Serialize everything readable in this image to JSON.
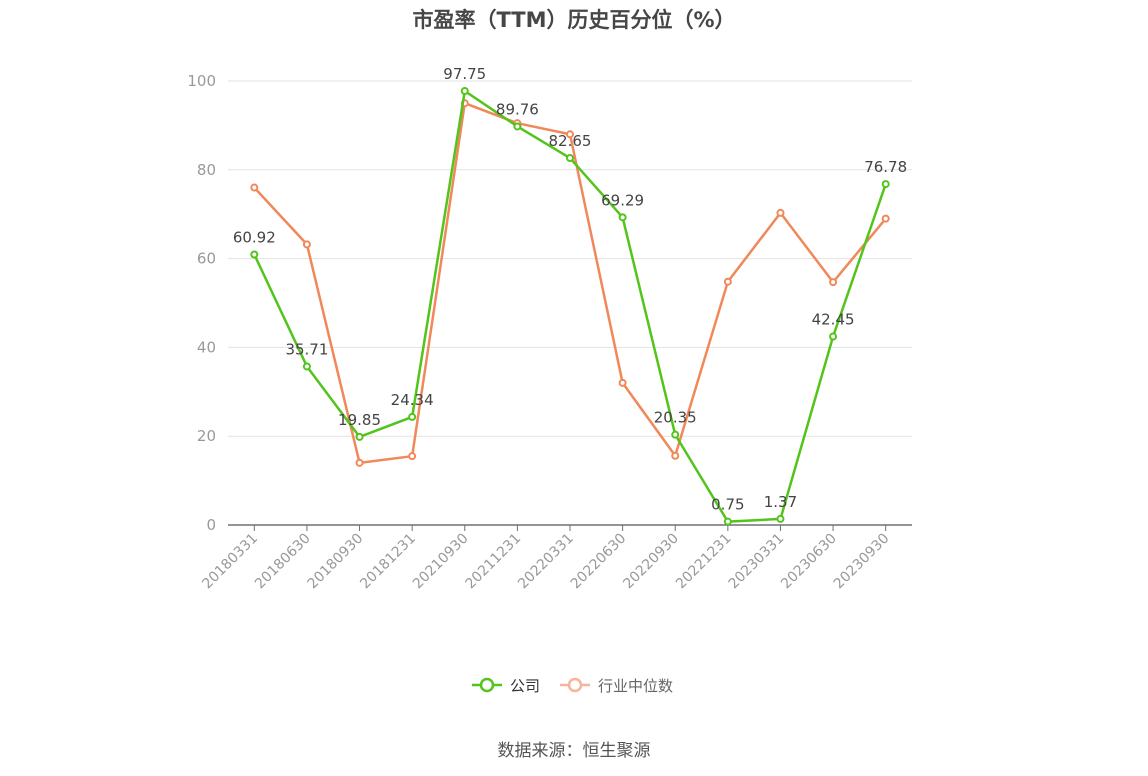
{
  "title": "市盈率（TTM）历史百分位（%）",
  "source": "数据来源：恒生聚源",
  "colors": {
    "company": "#52c41a",
    "industry": "#f0885a",
    "legend_industry": "#f8b39a"
  },
  "chart_data": {
    "type": "line",
    "title": "市盈率（TTM）历史百分位（%）",
    "xlabel": "",
    "ylabel": "",
    "ylim": [
      0,
      100
    ],
    "yticks": [
      0,
      20,
      40,
      60,
      80,
      100
    ],
    "grid": true,
    "legend_position": "bottom",
    "categories": [
      "20180331",
      "20180630",
      "20180930",
      "20181231",
      "20210930",
      "20211231",
      "20220331",
      "20220630",
      "20220930",
      "20221231",
      "20230331",
      "20230630",
      "20230930"
    ],
    "series": [
      {
        "name": "公司",
        "values": [
          60.92,
          35.71,
          19.85,
          24.34,
          97.75,
          89.76,
          82.65,
          69.29,
          20.35,
          0.75,
          1.37,
          42.45,
          76.78
        ],
        "labels": [
          "60.92",
          "35.71",
          "19.85",
          "24.34",
          "97.75",
          "89.76",
          "82.65",
          "69.29",
          "20.35",
          "0.75",
          "1.37",
          "42.45",
          "76.78"
        ]
      },
      {
        "name": "行业中位数",
        "values": [
          76,
          63.2,
          14,
          15.5,
          95,
          90.5,
          88,
          32,
          15.6,
          54.8,
          70.3,
          54.7,
          69
        ]
      }
    ]
  }
}
